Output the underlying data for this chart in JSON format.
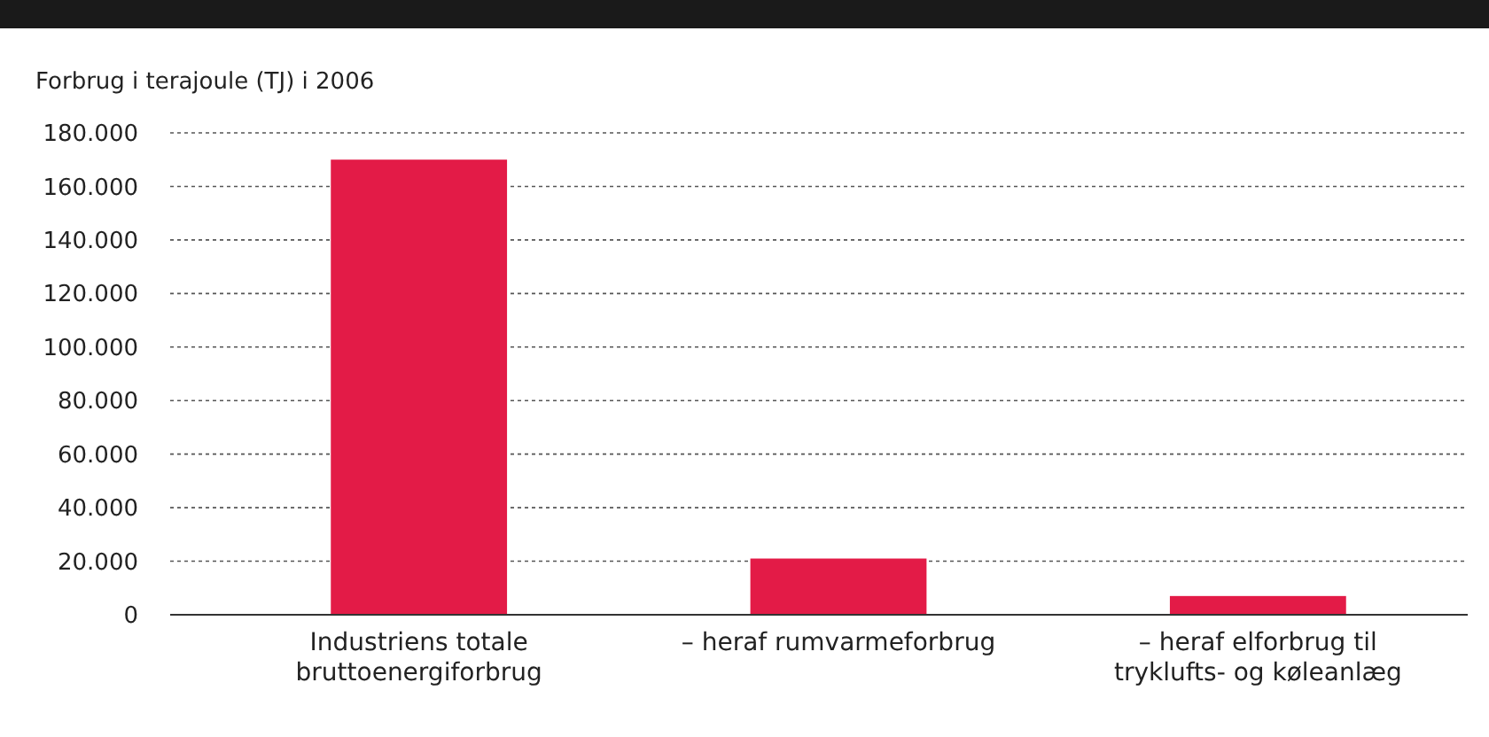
{
  "chart_data": {
    "type": "bar",
    "ylabel": "Forbrug i terajoule (TJ) i 2006",
    "categories": [
      "Industriens totale bruttoenergiforbrug",
      "– heraf rumvarmeforbrug",
      "– heraf elforbrug til tryklufts- og køleanlæg"
    ],
    "values": [
      170000,
      21000,
      7000
    ],
    "color": "#e31b47",
    "ylim": [
      0,
      180000
    ],
    "yticks": [
      {
        "value": 0,
        "label": "0"
      },
      {
        "value": 20000,
        "label": "20.000"
      },
      {
        "value": 40000,
        "label": "40.000"
      },
      {
        "value": 60000,
        "label": "60.000"
      },
      {
        "value": 80000,
        "label": "80.000"
      },
      {
        "value": 100000,
        "label": "100.000"
      },
      {
        "value": 120000,
        "label": "120.000"
      },
      {
        "value": 140000,
        "label": "140.000"
      },
      {
        "value": 160000,
        "label": "160.000"
      },
      {
        "value": 180000,
        "label": "180.000"
      }
    ],
    "grid": "y"
  }
}
